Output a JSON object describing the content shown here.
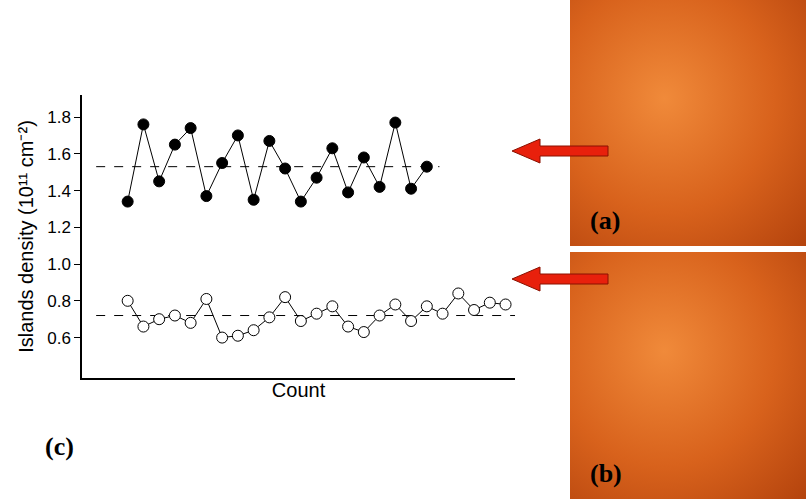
{
  "chart_data": {
    "type": "line",
    "y_label": "Islands density (10¹¹ cm⁻²)",
    "x_label": "Count",
    "panel_label": "(c)",
    "ylim": [
      0.38,
      1.92
    ],
    "yticks": [
      0.6,
      0.8,
      {
        "value": 1,
        "label": "1.0"
      },
      1.2,
      1.4,
      1.6,
      1.8
    ],
    "xlim": [
      -1.9,
      25.6
    ],
    "tick_labels": "y",
    "grid": false,
    "series": [
      {
        "color": "#000000",
        "marker": "filled circle",
        "line_style": "solid",
        "mean": 1.53,
        "x": [
          1,
          2,
          3,
          4,
          5,
          6,
          7,
          8,
          9,
          10,
          11,
          12,
          13,
          14,
          15,
          16,
          17,
          18,
          19,
          20
        ],
        "values": [
          1.34,
          1.76,
          1.45,
          1.65,
          1.74,
          1.37,
          1.55,
          1.7,
          1.35,
          1.67,
          1.52,
          1.34,
          1.47,
          1.63,
          1.39,
          1.58,
          1.42,
          1.77,
          1.41,
          1.53
        ]
      },
      {
        "color": "#000000",
        "marker": "open circle",
        "line_style": "solid",
        "mean": 0.72,
        "x": [
          1,
          2,
          3,
          4,
          5,
          6,
          7,
          8,
          9,
          10,
          11,
          12,
          13,
          14,
          15,
          16,
          17,
          18,
          19,
          20,
          21,
          22,
          23,
          24,
          25
        ],
        "values": [
          0.8,
          0.66,
          0.7,
          0.72,
          0.68,
          0.81,
          0.6,
          0.61,
          0.64,
          0.71,
          0.82,
          0.69,
          0.73,
          0.77,
          0.66,
          0.63,
          0.72,
          0.78,
          0.69,
          0.77,
          0.73,
          0.84,
          0.75,
          0.79,
          0.78
        ]
      }
    ]
  },
  "images": [
    {
      "label": "(a)"
    },
    {
      "label": "(b)"
    }
  ]
}
